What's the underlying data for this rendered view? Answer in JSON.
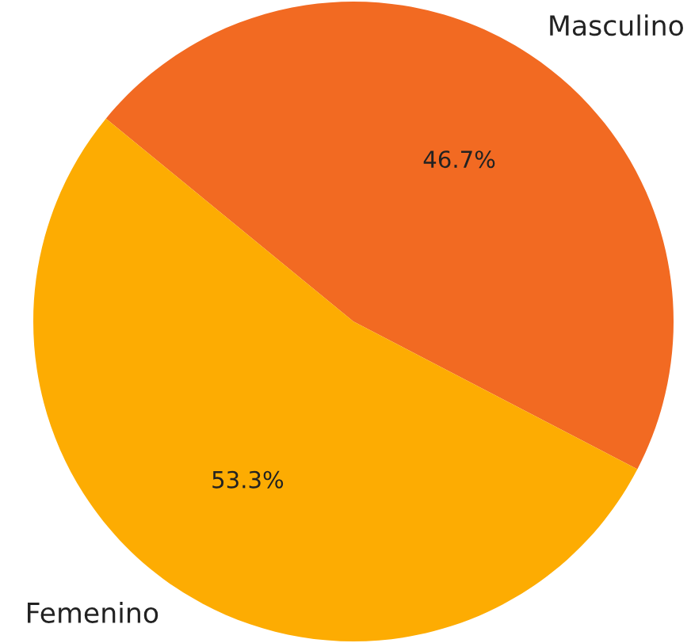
{
  "chart_data": {
    "type": "pie",
    "categories": [
      "Masculino",
      "Femenino"
    ],
    "values": [
      46.7,
      53.3
    ],
    "colors": [
      "#f26a22",
      "#fdac02"
    ],
    "value_labels": [
      "46.7%",
      "53.3%"
    ]
  }
}
